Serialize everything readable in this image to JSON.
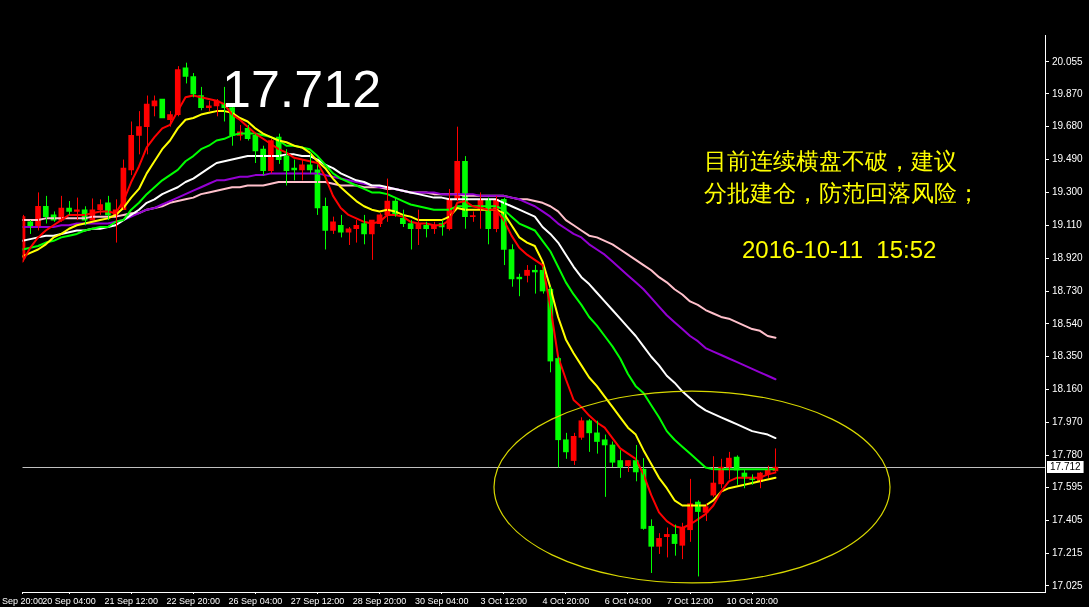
{
  "chart_data": {
    "type": "candlestick",
    "categories": [
      "Sep 20:00",
      null,
      null,
      null,
      null,
      null,
      "20 Sep 04:00",
      null,
      null,
      null,
      null,
      null,
      null,
      null,
      "21 Sep 12:00",
      null,
      null,
      null,
      null,
      null,
      null,
      null,
      "22 Sep 20:00",
      null,
      null,
      null,
      null,
      null,
      null,
      null,
      "26 Sep 04:00",
      null,
      null,
      null,
      null,
      null,
      null,
      null,
      "27 Sep 12:00",
      null,
      null,
      null,
      null,
      null,
      null,
      null,
      "28 Sep 20:00",
      null,
      null,
      null,
      null,
      null,
      null,
      null,
      "30 Sep 04:00",
      null,
      null,
      null,
      null,
      null,
      null,
      null,
      "3 Oct 12:00",
      null,
      null,
      null,
      null,
      null,
      null,
      null,
      "4 Oct 20:00",
      null,
      null,
      null,
      null,
      null,
      null,
      null,
      "6 Oct 04:00",
      null,
      null,
      null,
      null,
      null,
      null,
      null,
      "7 Oct 12:00",
      null,
      null,
      null,
      null,
      null,
      null,
      null,
      "10 Oct 20:00",
      null,
      null,
      null
    ],
    "ohlc": [
      [
        18.92,
        19.17,
        18.9,
        19.16
      ],
      [
        19.13,
        19.14,
        19.06,
        19.1
      ],
      [
        19.1,
        19.3,
        19.08,
        19.22
      ],
      [
        19.22,
        19.28,
        19.12,
        19.16
      ],
      [
        19.17,
        19.19,
        19.13,
        19.14
      ],
      [
        19.14,
        19.28,
        19.13,
        19.21
      ],
      [
        19.21,
        19.25,
        19.17,
        19.19
      ],
      [
        19.19,
        19.27,
        19.14,
        19.2
      ],
      [
        19.2,
        19.22,
        19.11,
        19.14
      ],
      [
        19.14,
        19.265,
        19.14,
        19.2
      ],
      [
        19.2,
        19.26,
        19.17,
        19.23
      ],
      [
        19.24,
        19.28,
        19.14,
        19.17
      ],
      [
        19.17,
        19.26,
        19.01,
        19.2
      ],
      [
        19.2,
        19.49,
        19.2,
        19.44
      ],
      [
        19.43,
        19.71,
        19.4,
        19.63
      ],
      [
        19.63,
        19.77,
        19.52,
        19.68
      ],
      [
        19.68,
        19.86,
        19.52,
        19.81
      ],
      [
        19.8,
        19.86,
        19.74,
        19.83
      ],
      [
        19.84,
        19.84,
        19.73,
        19.73
      ],
      [
        19.72,
        19.77,
        19.68,
        19.75
      ],
      [
        19.75,
        20.03,
        19.74,
        20.01
      ],
      [
        20.02,
        20.05,
        19.93,
        19.97
      ],
      [
        19.97,
        19.99,
        19.85,
        19.87
      ],
      [
        19.86,
        19.91,
        19.775,
        19.79
      ],
      [
        19.79,
        19.83,
        19.77,
        19.8
      ],
      [
        19.8,
        19.84,
        19.74,
        19.83
      ],
      [
        19.81,
        19.91,
        19.71,
        19.79
      ],
      [
        19.79,
        19.8,
        19.57,
        19.63
      ],
      [
        19.63,
        19.69,
        19.6,
        19.65
      ],
      [
        19.67,
        19.69,
        19.6,
        19.61
      ],
      [
        19.63,
        19.64,
        19.47,
        19.54
      ],
      [
        19.55,
        19.57,
        19.4,
        19.425
      ],
      [
        19.425,
        19.61,
        19.41,
        19.6
      ],
      [
        19.62,
        19.64,
        19.465,
        19.49
      ],
      [
        19.51,
        19.55,
        19.34,
        19.425
      ],
      [
        19.44,
        19.49,
        19.37,
        19.43
      ],
      [
        19.43,
        19.49,
        19.37,
        19.46
      ],
      [
        19.46,
        19.53,
        19.41,
        19.43
      ],
      [
        19.43,
        19.46,
        19.17,
        19.21
      ],
      [
        19.22,
        19.27,
        18.97,
        19.08
      ],
      [
        19.08,
        19.16,
        19.06,
        19.13
      ],
      [
        19.11,
        19.17,
        19.04,
        19.07
      ],
      [
        19.07,
        19.1,
        18.996,
        19.09
      ],
      [
        19.09,
        19.14,
        19.01,
        19.11
      ],
      [
        19.12,
        19.17,
        19.0,
        19.06
      ],
      [
        19.06,
        19.14,
        18.91,
        19.14
      ],
      [
        19.12,
        19.18,
        19.1,
        19.17
      ],
      [
        19.17,
        19.38,
        19.13,
        19.25
      ],
      [
        19.25,
        19.27,
        19.16,
        19.17
      ],
      [
        19.15,
        19.2,
        19.1,
        19.12
      ],
      [
        19.12,
        19.14,
        18.97,
        19.09
      ],
      [
        19.09,
        19.2,
        18.996,
        19.12
      ],
      [
        19.11,
        19.13,
        19.04,
        19.09
      ],
      [
        19.09,
        19.13,
        19.06,
        19.11
      ],
      [
        19.12,
        19.14,
        19.05,
        19.1
      ],
      [
        19.09,
        19.32,
        19.08,
        19.26
      ],
      [
        19.265,
        19.68,
        19.25,
        19.48
      ],
      [
        19.48,
        19.51,
        19.09,
        19.16
      ],
      [
        19.16,
        19.19,
        19.13,
        19.165
      ],
      [
        19.2,
        19.3,
        19.09,
        19.26
      ],
      [
        19.26,
        19.27,
        19.0,
        19.09
      ],
      [
        19.09,
        19.28,
        19.07,
        19.26
      ],
      [
        19.26,
        19.27,
        18.88,
        18.97
      ],
      [
        18.97,
        19.0,
        18.755,
        18.8
      ],
      [
        18.81,
        18.83,
        18.7,
        18.8
      ],
      [
        18.82,
        18.88,
        18.78,
        18.85
      ],
      [
        18.85,
        18.88,
        18.715,
        18.84
      ],
      [
        18.85,
        18.87,
        18.715,
        18.73
      ],
      [
        18.74,
        18.755,
        18.26,
        18.325
      ],
      [
        18.34,
        18.35,
        17.71,
        17.87
      ],
      [
        17.87,
        17.91,
        17.76,
        17.8
      ],
      [
        17.75,
        17.91,
        17.724,
        17.89
      ],
      [
        17.884,
        18.0,
        17.87,
        17.98
      ],
      [
        17.98,
        17.99,
        17.8,
        17.91
      ],
      [
        17.91,
        17.98,
        17.79,
        17.86
      ],
      [
        17.87,
        17.9,
        17.54,
        17.84
      ],
      [
        17.84,
        17.86,
        17.712,
        17.74
      ],
      [
        17.75,
        17.81,
        17.65,
        17.712
      ],
      [
        17.72,
        17.75,
        17.684,
        17.75
      ],
      [
        17.75,
        17.84,
        17.63,
        17.684
      ],
      [
        17.7,
        17.764,
        17.35,
        17.357
      ],
      [
        17.37,
        17.41,
        17.1,
        17.254
      ],
      [
        17.254,
        17.33,
        17.21,
        17.3
      ],
      [
        17.31,
        17.363,
        17.19,
        17.323
      ],
      [
        17.323,
        17.38,
        17.2,
        17.27
      ],
      [
        17.26,
        17.39,
        17.18,
        17.363
      ],
      [
        17.35,
        17.644,
        17.28,
        17.5
      ],
      [
        17.51,
        17.52,
        17.08,
        17.455
      ],
      [
        17.45,
        17.5,
        17.4,
        17.483
      ],
      [
        17.55,
        17.775,
        17.54,
        17.62
      ],
      [
        17.615,
        17.76,
        17.59,
        17.712
      ],
      [
        17.712,
        17.8,
        17.64,
        17.764
      ],
      [
        17.77,
        17.78,
        17.61,
        17.695
      ],
      [
        17.678,
        17.695,
        17.59,
        17.65
      ],
      [
        17.65,
        17.67,
        17.61,
        17.64
      ],
      [
        17.63,
        17.684,
        17.59,
        17.678
      ],
      [
        17.67,
        17.72,
        17.65,
        17.695
      ],
      [
        17.69,
        17.82,
        17.684,
        17.712
      ]
    ],
    "colors": [
      "#ff0000",
      "#00ff00",
      "#ff0000",
      "#00ff00",
      "#00ff00",
      "#ff0000",
      "#00ff00",
      "#ff0000",
      "#00ff00",
      "#ff0000",
      "#ff0000",
      "#00ff00",
      "#ff0000",
      "#ff0000",
      "#ff0000",
      "#ff0000",
      "#ff0000",
      "#ff0000",
      "#00ff00",
      "#ff0000",
      "#ff0000",
      "#00ff00",
      "#00ff00",
      "#00ff00",
      "#ff0000",
      "#ff0000",
      "#00ff00",
      "#00ff00",
      "#ff0000",
      "#00ff00",
      "#00ff00",
      "#00ff00",
      "#ff0000",
      "#00ff00",
      "#00ff00",
      "#00ff00",
      "#ff0000",
      "#00ff00",
      "#00ff00",
      "#00ff00",
      "#ff0000",
      "#00ff00",
      "#ff0000",
      "#ff0000",
      "#00ff00",
      "#ff0000",
      "#ff0000",
      "#ff0000",
      "#00ff00",
      "#00ff00",
      "#00ff00",
      "#ff0000",
      "#00ff00",
      "#ff0000",
      "#00ff00",
      "#ff0000",
      "#ff0000",
      "#00ff00",
      "#ff0000",
      "#ff0000",
      "#00ff00",
      "#ff0000",
      "#00ff00",
      "#00ff00",
      "#00ff00",
      "#ff0000",
      "#00ff00",
      "#00ff00",
      "#00ff00",
      "#00ff00",
      "#00ff00",
      "#ff0000",
      "#ff0000",
      "#00ff00",
      "#00ff00",
      "#00ff00",
      "#00ff00",
      "#00ff00",
      "#ff0000",
      "#00ff00",
      "#00ff00",
      "#00ff00",
      "#ff0000",
      "#ff0000",
      "#00ff00",
      "#ff0000",
      "#ff0000",
      "#00ff00",
      "#ff0000",
      "#ff0000",
      "#ff0000",
      "#ff0000",
      "#00ff00",
      "#00ff00",
      "#00ff00",
      "#ff0000",
      "#ff0000",
      "#ff0000"
    ],
    "series": [
      {
        "type": "line",
        "color": "#ff0000",
        "values": [
          18.9,
          18.98,
          19.04,
          19.08,
          19.11,
          19.14,
          19.17,
          19.17,
          19.17,
          19.18,
          19.19,
          19.19,
          19.18,
          19.25,
          19.36,
          19.45,
          19.56,
          19.62,
          19.67,
          19.69,
          19.77,
          19.85,
          19.86,
          19.85,
          19.84,
          19.83,
          19.81,
          19.75,
          19.72,
          19.68,
          19.64,
          19.61,
          19.58,
          19.55,
          19.53,
          19.5,
          19.49,
          19.48,
          19.47,
          19.39,
          19.28,
          19.21,
          19.17,
          19.15,
          19.13,
          19.12,
          19.13,
          19.17,
          19.17,
          19.16,
          19.13,
          19.12,
          19.12,
          19.11,
          19.11,
          19.14,
          19.24,
          19.25,
          19.22,
          19.21,
          19.2,
          19.2,
          19.14,
          19.05,
          18.98,
          18.94,
          18.91,
          18.88,
          18.64,
          18.35,
          18.22,
          18.1,
          18.06,
          18.01,
          17.97,
          17.94,
          17.88,
          17.82,
          17.79,
          17.76,
          17.67,
          17.55,
          17.45,
          17.4,
          17.37,
          17.36,
          17.38,
          17.41,
          17.44,
          17.49,
          17.57,
          17.63,
          17.65,
          17.65,
          17.65,
          17.65,
          17.67,
          17.68
        ]
      },
      {
        "type": "line",
        "color": "#ffff00",
        "values": [
          18.93,
          18.95,
          18.97,
          19.0,
          19.04,
          19.06,
          19.09,
          19.11,
          19.12,
          19.13,
          19.14,
          19.15,
          19.17,
          19.21,
          19.27,
          19.32,
          19.41,
          19.48,
          19.55,
          19.6,
          19.67,
          19.72,
          19.73,
          19.75,
          19.76,
          19.77,
          19.77,
          19.76,
          19.73,
          19.71,
          19.67,
          19.64,
          19.62,
          19.6,
          19.59,
          19.57,
          19.56,
          19.53,
          19.48,
          19.44,
          19.38,
          19.33,
          19.29,
          19.25,
          19.22,
          19.2,
          19.19,
          19.2,
          19.19,
          19.17,
          19.16,
          19.14,
          19.14,
          19.14,
          19.14,
          19.16,
          19.21,
          19.2,
          19.2,
          19.2,
          19.2,
          19.2,
          19.18,
          19.11,
          19.04,
          19.01,
          18.99,
          18.9,
          18.75,
          18.58,
          18.45,
          18.37,
          18.3,
          18.23,
          18.18,
          18.12,
          18.06,
          18.0,
          17.94,
          17.9,
          17.81,
          17.73,
          17.65,
          17.59,
          17.52,
          17.49,
          17.49,
          17.49,
          17.49,
          17.52,
          17.57,
          17.59,
          17.6,
          17.61,
          17.62,
          17.63,
          17.64,
          17.65
        ]
      },
      {
        "type": "line",
        "color": "#00ff00",
        "values": [
          18.97,
          18.98,
          18.99,
          19.01,
          19.02,
          19.04,
          19.05,
          19.06,
          19.08,
          19.09,
          19.1,
          19.1,
          19.13,
          19.14,
          19.2,
          19.24,
          19.29,
          19.33,
          19.37,
          19.4,
          19.43,
          19.48,
          19.51,
          19.55,
          19.57,
          19.6,
          19.61,
          19.63,
          19.64,
          19.64,
          19.64,
          19.63,
          19.62,
          19.6,
          19.57,
          19.57,
          19.56,
          19.55,
          19.51,
          19.46,
          19.41,
          19.38,
          19.36,
          19.34,
          19.32,
          19.3,
          19.3,
          19.29,
          19.27,
          19.25,
          19.23,
          19.22,
          19.21,
          19.2,
          19.2,
          19.2,
          19.22,
          19.22,
          19.22,
          19.22,
          19.22,
          19.22,
          19.2,
          19.16,
          19.12,
          19.1,
          19.08,
          19.02,
          18.96,
          18.87,
          18.78,
          18.71,
          18.65,
          18.58,
          18.53,
          18.47,
          18.41,
          18.34,
          18.25,
          18.18,
          18.14,
          18.07,
          18.0,
          17.92,
          17.87,
          17.83,
          17.79,
          17.75,
          17.71,
          17.7,
          17.7,
          17.7,
          17.7,
          17.7,
          17.7,
          17.7,
          17.7,
          17.7
        ]
      },
      {
        "type": "line",
        "color": "#ffffff",
        "values": [
          19.02,
          19.03,
          19.04,
          19.05,
          19.05,
          19.06,
          19.07,
          19.08,
          19.08,
          19.09,
          19.09,
          19.1,
          19.11,
          19.14,
          19.17,
          19.2,
          19.24,
          19.26,
          19.29,
          19.31,
          19.33,
          19.36,
          19.38,
          19.41,
          19.44,
          19.47,
          19.48,
          19.49,
          19.5,
          19.51,
          19.51,
          19.51,
          19.51,
          19.51,
          19.52,
          19.52,
          19.51,
          19.51,
          19.49,
          19.46,
          19.44,
          19.41,
          19.39,
          19.37,
          19.36,
          19.34,
          19.34,
          19.33,
          19.32,
          19.31,
          19.3,
          19.29,
          19.28,
          19.27,
          19.27,
          19.26,
          19.26,
          19.26,
          19.26,
          19.26,
          19.26,
          19.26,
          19.24,
          19.22,
          19.2,
          19.18,
          19.16,
          19.1,
          19.06,
          19.01,
          18.94,
          18.87,
          18.81,
          18.77,
          18.72,
          18.67,
          18.62,
          18.57,
          18.52,
          18.47,
          18.41,
          18.35,
          18.3,
          18.24,
          18.2,
          18.15,
          18.11,
          18.07,
          18.04,
          18.02,
          18.0,
          17.98,
          17.96,
          17.94,
          17.92,
          17.91,
          17.9,
          17.88
        ]
      },
      {
        "type": "line",
        "color": "#9400d3",
        "values": [
          19.1,
          19.1,
          19.1,
          19.1,
          19.1,
          19.11,
          19.11,
          19.12,
          19.12,
          19.12,
          19.12,
          19.12,
          19.13,
          19.14,
          19.16,
          19.18,
          19.2,
          19.21,
          19.23,
          19.25,
          19.27,
          19.29,
          19.31,
          19.33,
          19.35,
          19.37,
          19.37,
          19.38,
          19.39,
          19.39,
          19.4,
          19.4,
          19.41,
          19.41,
          19.41,
          19.41,
          19.41,
          19.41,
          19.41,
          19.4,
          19.39,
          19.38,
          19.37,
          19.36,
          19.35,
          19.34,
          19.33,
          19.33,
          19.32,
          19.31,
          19.3,
          19.3,
          19.3,
          19.3,
          19.29,
          19.29,
          19.29,
          19.29,
          19.29,
          19.28,
          19.28,
          19.28,
          19.28,
          19.27,
          19.26,
          19.24,
          19.22,
          19.19,
          19.16,
          19.12,
          19.09,
          19.06,
          19.04,
          19.0,
          18.97,
          18.94,
          18.9,
          18.86,
          18.82,
          18.78,
          18.74,
          18.69,
          18.64,
          18.59,
          18.55,
          18.51,
          18.47,
          18.44,
          18.4,
          18.38,
          18.36,
          18.34,
          18.32,
          18.3,
          18.28,
          18.26,
          18.24,
          18.22
        ]
      },
      {
        "type": "line",
        "color": "#ffc0cb",
        "values": [
          19.14,
          19.14,
          19.14,
          19.15,
          19.15,
          19.15,
          19.15,
          19.15,
          19.15,
          19.16,
          19.16,
          19.16,
          19.16,
          19.17,
          19.18,
          19.18,
          19.2,
          19.21,
          19.22,
          19.24,
          19.25,
          19.26,
          19.27,
          19.29,
          19.3,
          19.31,
          19.32,
          19.33,
          19.33,
          19.34,
          19.34,
          19.34,
          19.35,
          19.36,
          19.36,
          19.36,
          19.36,
          19.36,
          19.36,
          19.36,
          19.35,
          19.34,
          19.34,
          19.34,
          19.33,
          19.33,
          19.33,
          19.32,
          19.32,
          19.31,
          19.3,
          19.3,
          19.3,
          19.29,
          19.29,
          19.29,
          19.29,
          19.28,
          19.28,
          19.28,
          19.28,
          19.28,
          19.28,
          19.27,
          19.26,
          19.26,
          19.25,
          19.24,
          19.22,
          19.19,
          19.14,
          19.11,
          19.08,
          19.05,
          19.04,
          19.02,
          19.0,
          18.97,
          18.94,
          18.91,
          18.88,
          18.85,
          18.81,
          18.78,
          18.74,
          18.71,
          18.67,
          18.65,
          18.62,
          18.6,
          18.58,
          18.57,
          18.55,
          18.53,
          18.51,
          18.5,
          18.47,
          18.46
        ]
      }
    ],
    "ylim": [
      16.99,
      20.21
    ],
    "yticks": [
      20.055,
      {
        "value": 19.87,
        "label": "19.870"
      },
      {
        "value": 19.68,
        "label": "19.680"
      },
      {
        "value": 19.49,
        "label": "19.490"
      },
      {
        "value": 19.3,
        "label": "19.300"
      },
      {
        "value": 19.11,
        "label": "19.110"
      },
      {
        "value": 18.92,
        "label": "18.920"
      },
      {
        "value": 18.73,
        "label": "18.730"
      },
      {
        "value": 18.54,
        "label": "18.540"
      },
      {
        "value": 18.35,
        "label": "18.350"
      },
      {
        "value": 18.16,
        "label": "18.160"
      },
      {
        "value": 17.97,
        "label": "17.970"
      },
      {
        "value": 17.78,
        "label": "17.780"
      },
      17.595,
      17.405,
      17.215,
      17.025
    ],
    "ref_lines": [
      {
        "axis": "y",
        "value": 17.712,
        "label": "17.712",
        "color": "#c0c0c0"
      }
    ],
    "annotations": [
      "17.712",
      "目前连续横盘不破，建议分批建仓，防范回落风险；",
      "2016-10-11  15:52"
    ]
  }
}
